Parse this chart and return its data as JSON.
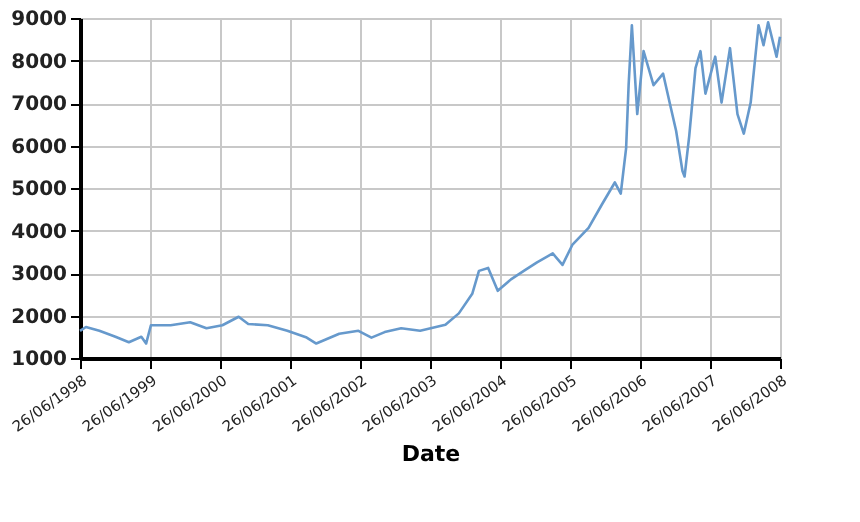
{
  "chart_data": {
    "type": "line",
    "xlabel": "Date",
    "x": [
      "1998-06-26",
      "1998-07-27",
      "1998-10-05",
      "1998-12-28",
      "1999-03-08",
      "1999-05-12",
      "1999-06-06",
      "1999-07-01",
      "1999-10-12",
      "2000-01-22",
      "2000-04-16",
      "2000-07-08",
      "2000-10-01",
      "2000-11-20",
      "2001-03-02",
      "2001-06-12",
      "2001-09-21",
      "2001-11-10",
      "2002-03-10",
      "2002-06-18",
      "2002-08-25",
      "2002-11-02",
      "2003-01-27",
      "2003-05-06",
      "2003-09-15",
      "2003-11-24",
      "2004-02-02",
      "2004-03-08",
      "2004-04-25",
      "2004-06-14",
      "2004-08-22",
      "2004-10-28",
      "2005-01-05",
      "2005-03-28",
      "2005-05-18",
      "2005-07-08",
      "2005-10-01",
      "2005-12-08",
      "2006-02-15",
      "2006-03-18",
      "2006-04-15",
      "2006-04-28",
      "2006-05-15",
      "2006-06-12",
      "2006-07-15",
      "2006-09-05",
      "2006-10-25",
      "2006-11-28",
      "2007-01-01",
      "2007-02-03",
      "2007-02-14",
      "2007-03-10",
      "2007-04-12",
      "2007-05-08",
      "2007-06-03",
      "2007-07-24",
      "2007-08-26",
      "2007-10-09",
      "2007-11-17",
      "2007-12-20",
      "2008-01-25",
      "2008-03-06",
      "2008-04-01",
      "2008-04-25",
      "2008-06-08",
      "2008-06-26"
    ],
    "series": [
      {
        "color": "#6699cc",
        "values": [
          1640,
          1730,
          1640,
          1500,
          1370,
          1500,
          1340,
          1770,
          1770,
          1840,
          1700,
          1770,
          1970,
          1800,
          1770,
          1640,
          1480,
          1340,
          1570,
          1640,
          1480,
          1610,
          1700,
          1640,
          1780,
          2050,
          2510,
          3050,
          3120,
          2580,
          2850,
          3050,
          3250,
          3460,
          3190,
          3660,
          4060,
          4600,
          5130,
          4870,
          5940,
          7420,
          8830,
          6740,
          8220,
          7420,
          7690,
          7010,
          6340,
          5400,
          5270,
          6210,
          7820,
          8220,
          7220,
          8090,
          7010,
          8290,
          6740,
          6280,
          7010,
          8830,
          8360,
          8900,
          8090,
          8560
        ]
      }
    ],
    "xlim": [
      "1998-06-26",
      "2008-06-26"
    ],
    "xticks": [
      {
        "value": "1998-06-26",
        "label": "26/06/1998"
      },
      {
        "value": "1999-06-26",
        "label": "26/06/1999"
      },
      {
        "value": "2000-06-26",
        "label": "26/06/2000"
      },
      {
        "value": "2001-06-26",
        "label": "26/06/2001"
      },
      {
        "value": "2002-06-26",
        "label": "26/06/2002"
      },
      {
        "value": "2003-06-26",
        "label": "26/06/2003"
      },
      {
        "value": "2004-06-26",
        "label": "26/06/2004"
      },
      {
        "value": "2005-06-26",
        "label": "26/06/2005"
      },
      {
        "value": "2006-06-26",
        "label": "26/06/2006"
      },
      {
        "value": "2007-06-26",
        "label": "26/06/2007"
      },
      {
        "value": "2008-06-26",
        "label": "26/06/2008"
      }
    ],
    "ylim": [
      1000,
      9000
    ],
    "yticks": [
      1000,
      2000,
      3000,
      4000,
      5000,
      6000,
      7000,
      8000,
      9000
    ],
    "grid": true,
    "legend": false,
    "marker": "none",
    "line_style": "solid"
  }
}
